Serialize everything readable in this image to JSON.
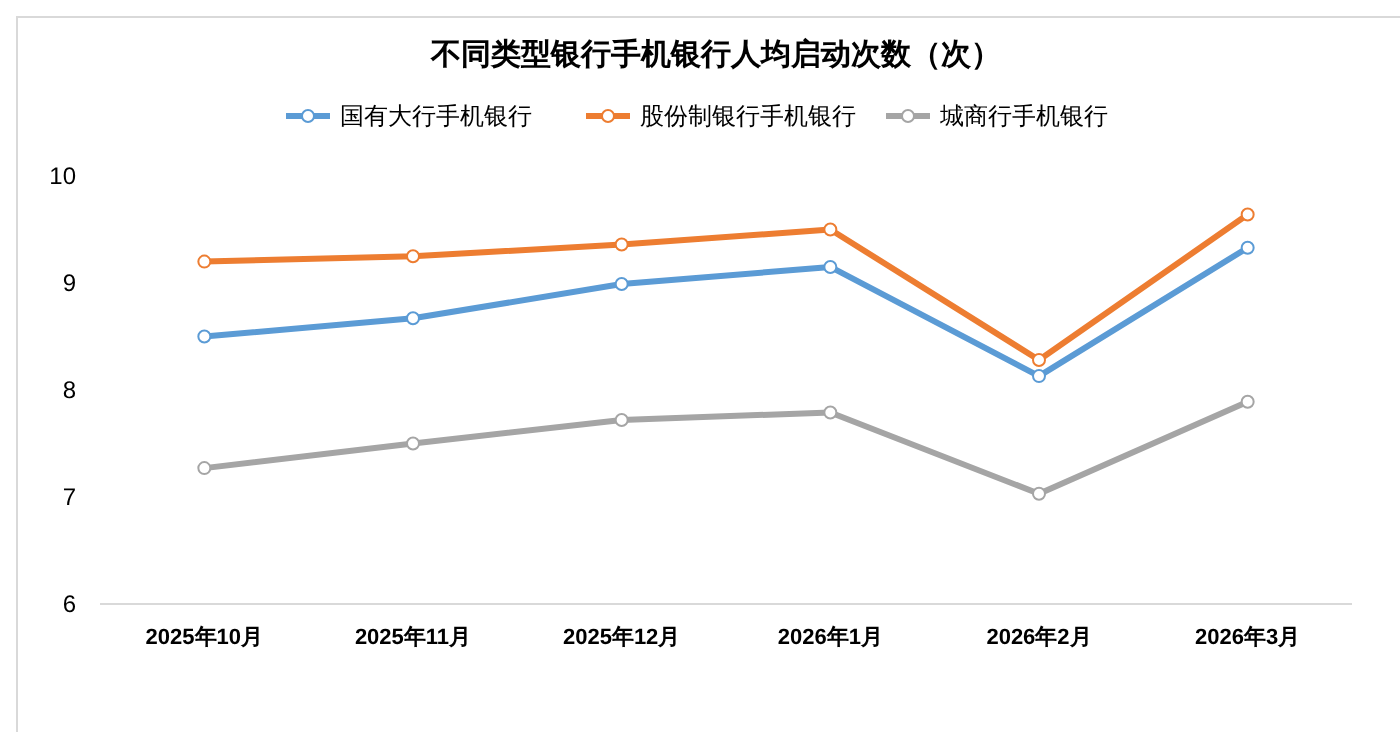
{
  "chart_data": {
    "type": "line",
    "title": "不同类型银行手机银行人均启动次数（次）",
    "categories": [
      "2025年10月",
      "2025年11月",
      "2025年12月",
      "2026年1月",
      "2026年2月",
      "2026年3月"
    ],
    "series": [
      {
        "name": "国有大行手机银行",
        "color": "#5b9bd5",
        "values": [
          8.5,
          8.67,
          8.99,
          9.15,
          8.13,
          9.33
        ]
      },
      {
        "name": "股份制银行手机银行",
        "color": "#ed7d31",
        "values": [
          9.2,
          9.25,
          9.36,
          9.5,
          8.28,
          9.64
        ]
      },
      {
        "name": "城商行手机银行",
        "color": "#a5a5a5",
        "values": [
          7.27,
          7.5,
          7.72,
          7.79,
          7.03,
          7.89
        ]
      }
    ],
    "ylim": [
      6,
      10
    ],
    "yticks": [
      6,
      7,
      8,
      9,
      10
    ],
    "legend": "top",
    "marker": "circle",
    "grid": false
  }
}
